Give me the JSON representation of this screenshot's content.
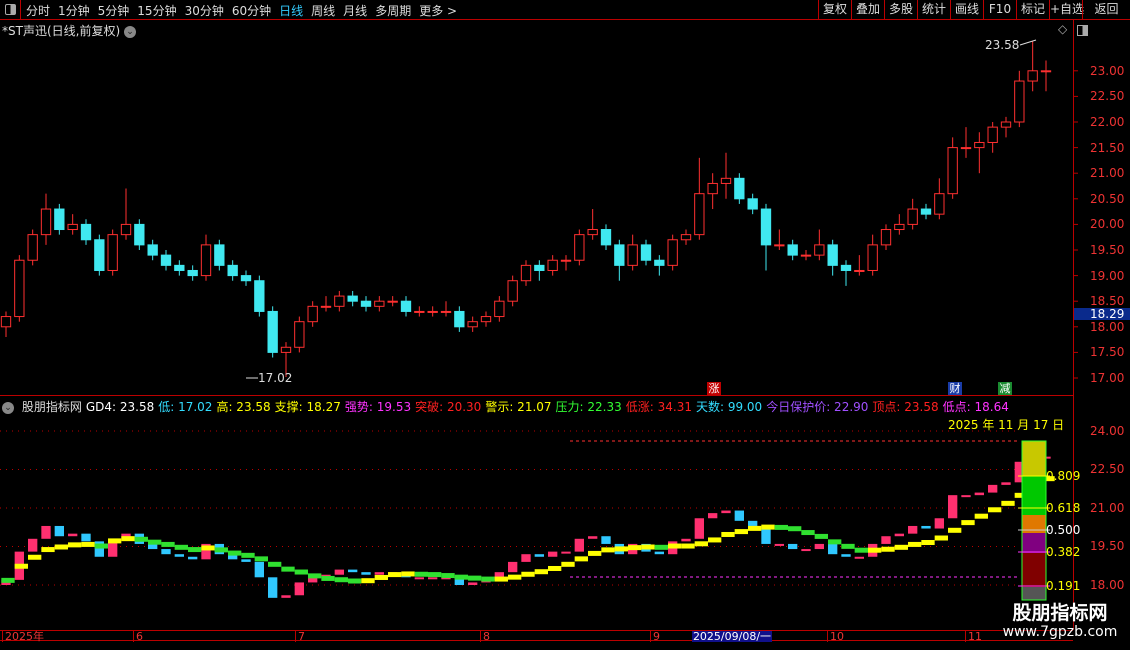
{
  "toolbar": {
    "periods": [
      "分时",
      "1分钟",
      "5分钟",
      "15分钟",
      "30分钟",
      "60分钟",
      "日线",
      "周线",
      "月线",
      "多周期",
      "更多 >"
    ],
    "active": "日线",
    "buttons": [
      "复权",
      "叠加",
      "多股",
      "统计",
      "画线",
      "F10",
      "标记",
      "+自选",
      "返回"
    ]
  },
  "chart": {
    "title": "*ST声迅(日线,前复权)",
    "price_labels": [
      "23.00",
      "22.50",
      "22.00",
      "21.50",
      "21.00",
      "20.50",
      "20.00",
      "19.50",
      "19.00",
      "18.50",
      "18.00",
      "17.50",
      "17.00"
    ],
    "last_price": "18.29",
    "high_annot": "23.58",
    "low_annot": "17.02",
    "markers": [
      {
        "text": "涨",
        "color": "#c00000"
      },
      {
        "text": "财",
        "color": "#1a3ca8"
      },
      {
        "text": "减",
        "color": "#1a8a30"
      }
    ],
    "ohlc": [
      [
        18.0,
        18.3,
        17.8,
        18.2
      ],
      [
        18.2,
        19.4,
        18.1,
        19.3
      ],
      [
        19.3,
        19.9,
        19.2,
        19.8
      ],
      [
        19.8,
        20.6,
        19.6,
        20.3
      ],
      [
        20.3,
        20.4,
        19.8,
        19.9
      ],
      [
        19.9,
        20.2,
        19.8,
        20.0
      ],
      [
        20.0,
        20.1,
        19.6,
        19.7
      ],
      [
        19.7,
        19.8,
        19.0,
        19.1
      ],
      [
        19.1,
        19.9,
        19.0,
        19.8
      ],
      [
        19.8,
        20.7,
        19.7,
        20.0
      ],
      [
        20.0,
        20.1,
        19.5,
        19.6
      ],
      [
        19.6,
        19.7,
        19.3,
        19.4
      ],
      [
        19.4,
        19.5,
        19.1,
        19.2
      ],
      [
        19.2,
        19.3,
        19.0,
        19.1
      ],
      [
        19.1,
        19.2,
        18.9,
        19.0
      ],
      [
        19.0,
        19.8,
        18.9,
        19.6
      ],
      [
        19.6,
        19.7,
        19.1,
        19.2
      ],
      [
        19.2,
        19.3,
        18.9,
        19.0
      ],
      [
        19.0,
        19.1,
        18.8,
        18.9
      ],
      [
        18.9,
        19.0,
        18.2,
        18.3
      ],
      [
        18.3,
        18.4,
        17.4,
        17.5
      ],
      [
        17.5,
        17.7,
        17.02,
        17.6
      ],
      [
        17.6,
        18.2,
        17.5,
        18.1
      ],
      [
        18.1,
        18.5,
        18.0,
        18.4
      ],
      [
        18.4,
        18.6,
        18.3,
        18.4
      ],
      [
        18.4,
        18.7,
        18.3,
        18.6
      ],
      [
        18.6,
        18.7,
        18.4,
        18.5
      ],
      [
        18.5,
        18.6,
        18.3,
        18.4
      ],
      [
        18.4,
        18.6,
        18.3,
        18.5
      ],
      [
        18.5,
        18.6,
        18.4,
        18.5
      ],
      [
        18.5,
        18.6,
        18.2,
        18.3
      ],
      [
        18.3,
        18.4,
        18.2,
        18.3
      ],
      [
        18.3,
        18.4,
        18.2,
        18.3
      ],
      [
        18.3,
        18.5,
        18.2,
        18.3
      ],
      [
        18.3,
        18.4,
        17.9,
        18.0
      ],
      [
        18.0,
        18.2,
        17.9,
        18.1
      ],
      [
        18.1,
        18.3,
        18.0,
        18.2
      ],
      [
        18.2,
        18.6,
        18.1,
        18.5
      ],
      [
        18.5,
        19.0,
        18.4,
        18.9
      ],
      [
        18.9,
        19.3,
        18.8,
        19.2
      ],
      [
        19.2,
        19.3,
        18.9,
        19.1
      ],
      [
        19.1,
        19.4,
        19.0,
        19.3
      ],
      [
        19.3,
        19.4,
        19.1,
        19.3
      ],
      [
        19.3,
        19.9,
        19.2,
        19.8
      ],
      [
        19.8,
        20.3,
        19.7,
        19.9
      ],
      [
        19.9,
        20.0,
        19.5,
        19.6
      ],
      [
        19.6,
        19.7,
        18.9,
        19.2
      ],
      [
        19.2,
        19.8,
        19.1,
        19.6
      ],
      [
        19.6,
        19.7,
        19.2,
        19.3
      ],
      [
        19.3,
        19.4,
        19.0,
        19.2
      ],
      [
        19.2,
        19.8,
        19.1,
        19.7
      ],
      [
        19.7,
        19.9,
        19.6,
        19.8
      ],
      [
        19.8,
        21.3,
        19.7,
        20.6
      ],
      [
        20.6,
        21.0,
        20.3,
        20.8
      ],
      [
        20.8,
        21.4,
        20.5,
        20.9
      ],
      [
        20.9,
        21.0,
        20.4,
        20.5
      ],
      [
        20.5,
        20.6,
        20.2,
        20.3
      ],
      [
        20.3,
        20.4,
        19.1,
        19.6
      ],
      [
        19.6,
        19.9,
        19.5,
        19.6
      ],
      [
        19.6,
        19.7,
        19.3,
        19.4
      ],
      [
        19.4,
        19.5,
        19.3,
        19.4
      ],
      [
        19.4,
        19.9,
        19.3,
        19.6
      ],
      [
        19.6,
        19.7,
        19.0,
        19.2
      ],
      [
        19.2,
        19.3,
        18.8,
        19.1
      ],
      [
        19.1,
        19.4,
        19.0,
        19.1
      ],
      [
        19.1,
        19.8,
        19.0,
        19.6
      ],
      [
        19.6,
        20.0,
        19.5,
        19.9
      ],
      [
        19.9,
        20.2,
        19.8,
        20.0
      ],
      [
        20.0,
        20.5,
        19.9,
        20.3
      ],
      [
        20.3,
        20.4,
        20.1,
        20.2
      ],
      [
        20.2,
        20.9,
        20.1,
        20.6
      ],
      [
        20.6,
        21.7,
        20.5,
        21.5
      ],
      [
        21.5,
        21.9,
        21.3,
        21.5
      ],
      [
        21.5,
        21.8,
        21.0,
        21.6
      ],
      [
        21.6,
        22.0,
        21.4,
        21.9
      ],
      [
        21.9,
        22.1,
        21.7,
        22.0
      ],
      [
        22.0,
        23.0,
        21.9,
        22.8
      ],
      [
        22.8,
        23.58,
        22.6,
        23.0
      ],
      [
        23.0,
        23.2,
        22.6,
        23.0
      ]
    ]
  },
  "indicator": {
    "name": "股朋指标网",
    "items": [
      {
        "label": "GD4:",
        "value": "23.58",
        "color": "#ffffff"
      },
      {
        "label": "低:",
        "value": "17.02",
        "color": "#33ddff"
      },
      {
        "label": "高:",
        "value": "23.58",
        "color": "#ffff00"
      },
      {
        "label": "支撑:",
        "value": "18.27",
        "color": "#ffff00"
      },
      {
        "label": "强势:",
        "value": "19.53",
        "color": "#ff33ff"
      },
      {
        "label": "突破:",
        "value": "20.30",
        "color": "#ff2020"
      },
      {
        "label": "警示:",
        "value": "21.07",
        "color": "#ffff00"
      },
      {
        "label": "压力:",
        "value": "22.33",
        "color": "#33ff33"
      },
      {
        "label": "低涨:",
        "value": "34.31",
        "color": "#ff2020"
      },
      {
        "label": "天数:",
        "value": "99.00",
        "color": "#33ddff"
      },
      {
        "label": "今日保护价:",
        "value": "22.90",
        "color": "#a050ff"
      },
      {
        "label": "顶点:",
        "value": "23.58",
        "color": "#ff2020"
      },
      {
        "label": "低点:",
        "value": "18.64",
        "color": "#ff33ff"
      }
    ],
    "date_label": "2025 年 11 月 17 日",
    "price_labels": [
      "24.00",
      "22.50",
      "21.00",
      "19.50",
      "18.00"
    ],
    "fib_labels": [
      "0.809",
      "0.618",
      "0.500",
      "0.382",
      "0.191"
    ]
  },
  "time_axis": {
    "labels": [
      "2025年",
      "6",
      "7",
      "8",
      "9",
      "10",
      "11"
    ],
    "selected": "2025/09/08/一"
  },
  "watermark": {
    "name": "股朋指标网",
    "url": "www.7gpzb.com"
  }
}
